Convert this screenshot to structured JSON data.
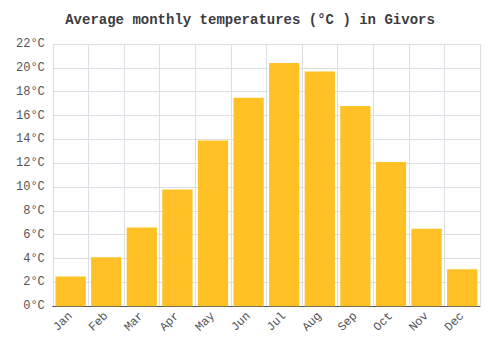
{
  "chart_data": {
    "type": "bar",
    "title": "Average monthly temperatures (°C ) in Givors",
    "categories": [
      "Jan",
      "Feb",
      "Mar",
      "Apr",
      "May",
      "Jun",
      "Jul",
      "Aug",
      "Sep",
      "Oct",
      "Nov",
      "Dec"
    ],
    "values": [
      2.5,
      4.1,
      6.6,
      9.8,
      13.9,
      17.5,
      20.4,
      19.7,
      16.8,
      12.1,
      6.5,
      3.1
    ],
    "color": "#FFC125",
    "ylim": [
      0,
      22
    ],
    "yticks": [
      {
        "value": 0,
        "label": "0°C"
      },
      {
        "value": 2,
        "label": "2°C"
      },
      {
        "value": 4,
        "label": "4°C"
      },
      {
        "value": 6,
        "label": "6°C"
      },
      {
        "value": 8,
        "label": "8°C"
      },
      {
        "value": 10,
        "label": "10°C"
      },
      {
        "value": 12,
        "label": "12°C"
      },
      {
        "value": 14,
        "label": "14°C"
      },
      {
        "value": 16,
        "label": "16°C"
      },
      {
        "value": 18,
        "label": "18°C"
      },
      {
        "value": 20,
        "label": "20°C"
      },
      {
        "value": 22,
        "label": "22°C"
      }
    ],
    "grid": true
  }
}
